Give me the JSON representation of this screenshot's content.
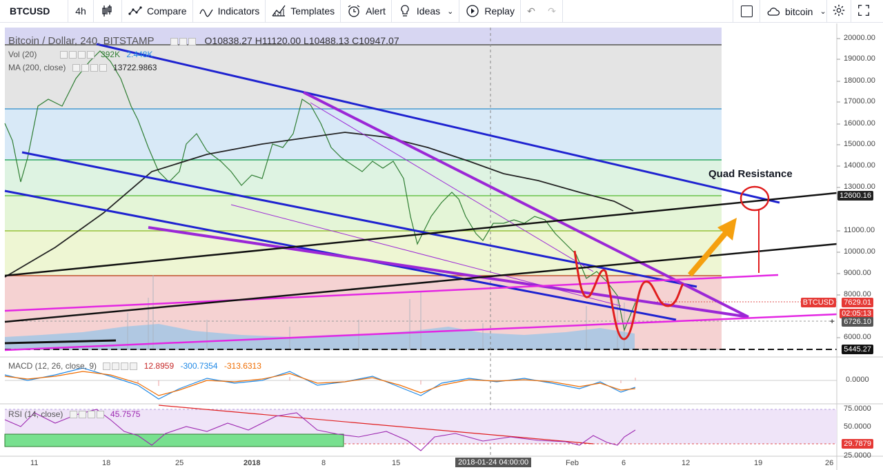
{
  "toolbar": {
    "symbol": "BTCUSD",
    "interval": "4h",
    "compare": "Compare",
    "indicators": "Indicators",
    "templates": "Templates",
    "alert": "Alert",
    "ideas": "Ideas",
    "replay": "Replay",
    "cloud_label": "bitcoin"
  },
  "legend": {
    "title": "Bitcoin / Dollar, 240, BITSTAMP",
    "ohlc": "O10838.27  H11120.00  L10488.13  C10947.07",
    "vol_label": "Vol (20)",
    "vol_v1": "392K",
    "vol_v2": "2.448K",
    "ma_label": "MA (200, close)",
    "ma_value": "13722.9863",
    "macd_label": "MACD (12, 26, close, 9)",
    "macd_v1": "12.8959",
    "macd_v2": "-300.7354",
    "macd_v3": "-313.6313",
    "rsi_label": "RSI (14, close)",
    "rsi_value": "45.7575"
  },
  "annotation": "Quad Resistance",
  "price_axis": [
    "20000.00",
    "19000.00",
    "18000.00",
    "17000.00",
    "16000.00",
    "15000.00",
    "14000.00",
    "13000.00",
    "11000.00",
    "10000.00",
    "9000.00",
    "8000.00",
    "6000.00"
  ],
  "macd_axis": [
    "0.0000"
  ],
  "rsi_axis": [
    "75.0000",
    "50.0000",
    "25.0000"
  ],
  "price_labels": {
    "p12600": "12600.16",
    "btcusd_tag": "BTCUSD",
    "last": "7629.01",
    "countdown": "02:05:13",
    "cross": "6726.10",
    "p5445": "5445.27",
    "rsi_low": "29.7879"
  },
  "time_axis": [
    "11",
    "18",
    "25",
    "2018",
    "8",
    "15",
    "Feb",
    "6",
    "12",
    "19",
    "26"
  ],
  "crosshair_date": "2018-01-24 04:00:00",
  "colors": {
    "blue_channel": "#1e22d0",
    "purple_wedge": "#9b27d6",
    "magenta": "#e326e3",
    "black_trend": "#111111",
    "red_path": "#e01e1e",
    "orange_arrow": "#f5a00f",
    "ma_line": "#222222"
  }
}
